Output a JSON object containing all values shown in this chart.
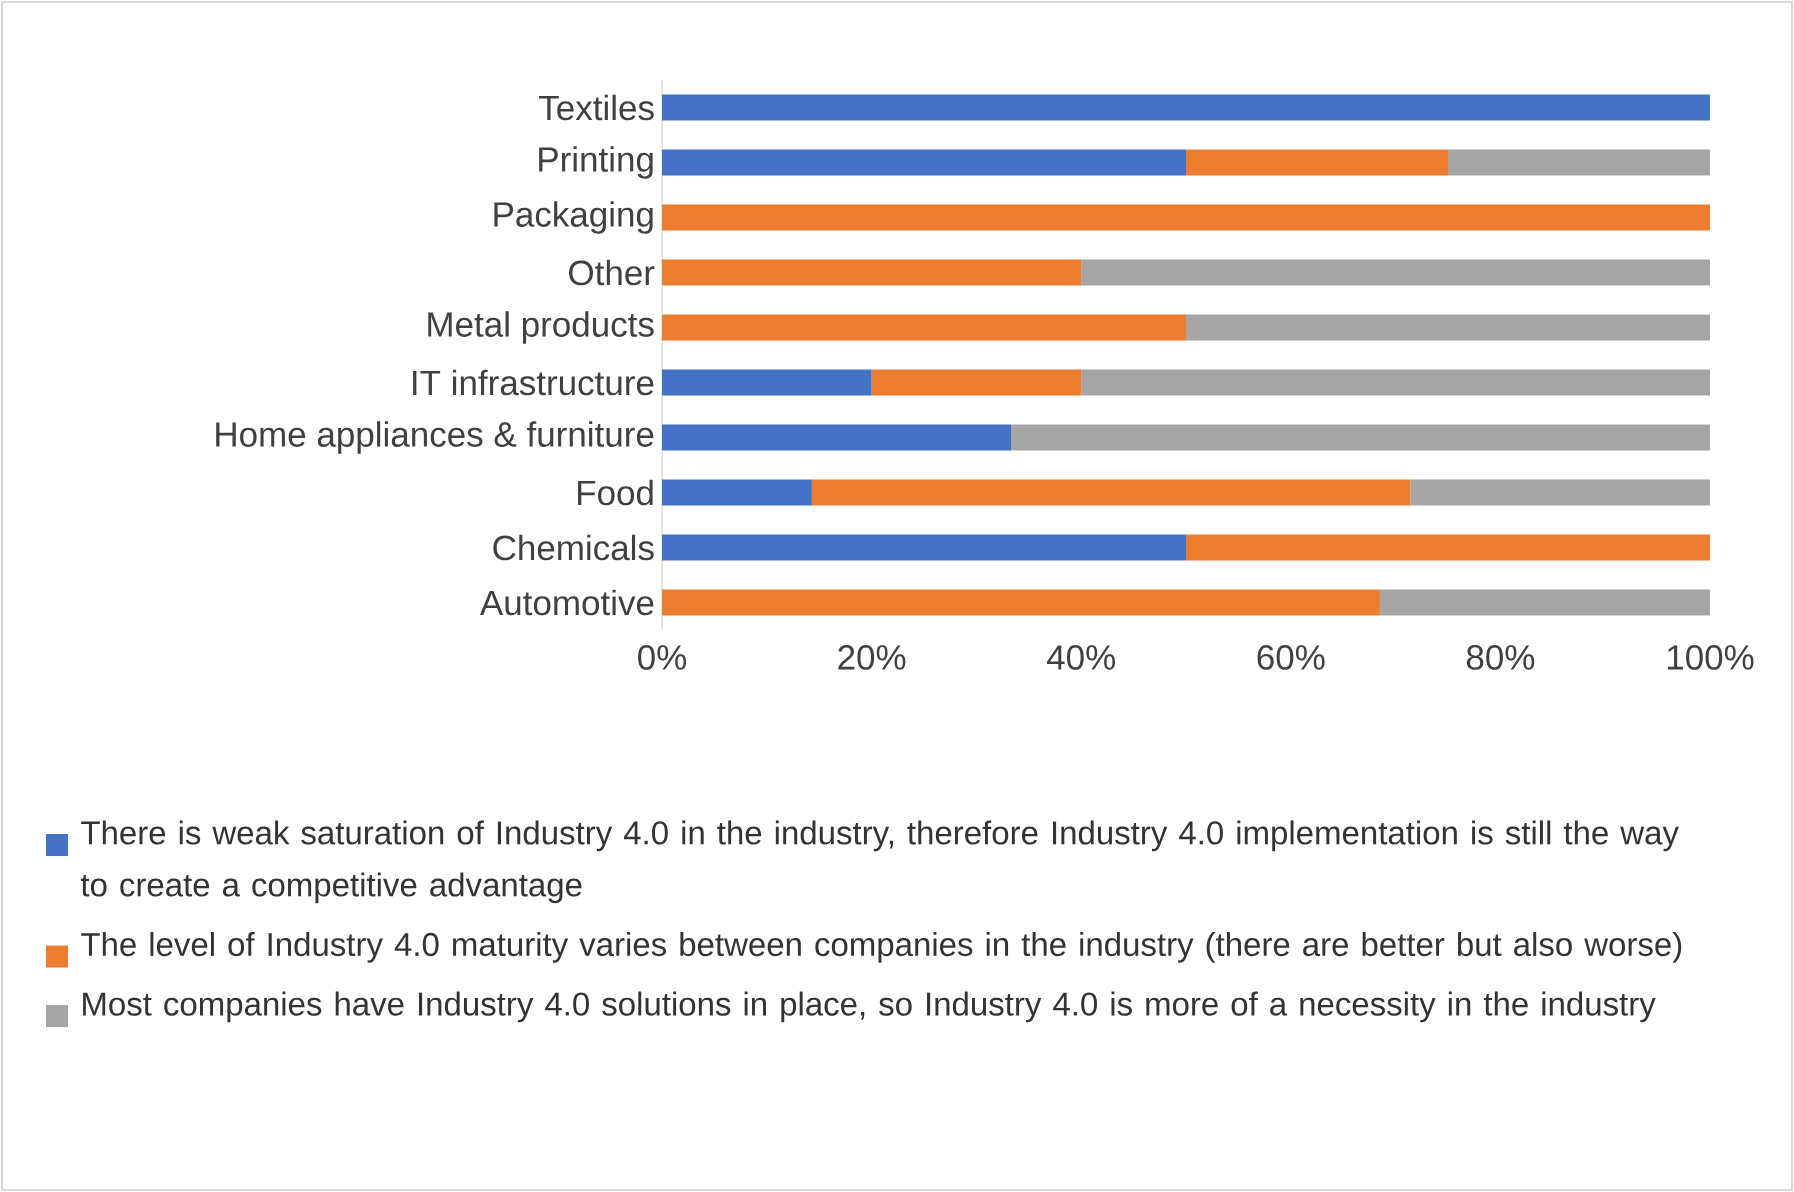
{
  "chart_data": {
    "type": "bar",
    "orientation": "horizontal",
    "stacked": true,
    "categories": [
      "Textiles",
      "Printing",
      "Packaging",
      "Other",
      "Metal products",
      "IT infrastructure",
      "Home appliances & furniture",
      "Food",
      "Chemicals",
      "Automotive"
    ],
    "series": [
      {
        "name": "There is weak saturation of Industry 4.0 in the industry, therefore Industry 4.0 implementation is still the way to create a competitive advantage",
        "color": "#4472c4",
        "values": [
          100,
          50,
          0,
          0,
          0,
          20,
          33.3,
          14.3,
          50,
          0
        ]
      },
      {
        "name": "The level of Industry 4.0 maturity varies between companies in the industry (there are better but also worse)",
        "color": "#ed7d31",
        "values": [
          0,
          25,
          100,
          40,
          50,
          20,
          0,
          57.1,
          50,
          68.5
        ]
      },
      {
        "name": "Most companies have Industry 4.0 solutions in place, so Industry 4.0 is more of a necessity in the industry",
        "color": "#a5a5a5",
        "values": [
          0,
          25,
          0,
          60,
          50,
          60,
          66.7,
          28.6,
          0,
          31.5
        ]
      }
    ],
    "xlim": [
      0,
      100
    ],
    "xticks": [
      {
        "value": 0,
        "label": "0%"
      },
      {
        "value": 20,
        "label": "20%"
      },
      {
        "value": 40,
        "label": "40%"
      },
      {
        "value": 60,
        "label": "60%"
      },
      {
        "value": 80,
        "label": "80%"
      },
      {
        "value": 100,
        "label": "100%"
      }
    ],
    "legend": "bottom"
  }
}
